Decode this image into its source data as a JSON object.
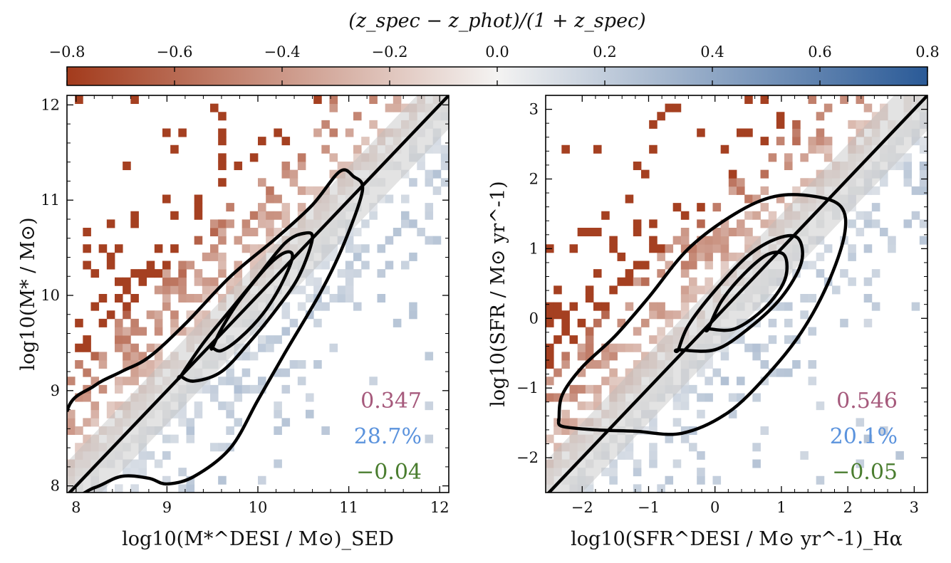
{
  "colorbar": {
    "label": "(z_spec − z_phot)/(1 + z_spec)",
    "range": [
      -0.8,
      0.8
    ],
    "ticks": [
      "−0.8",
      "−0.6",
      "−0.4",
      "−0.2",
      "0.0",
      "0.2",
      "0.4",
      "0.6",
      "0.8"
    ],
    "colors": {
      "neg": "#a33b1c",
      "mid": "#f4f3f2",
      "pos": "#2a5a97"
    }
  },
  "chart_data": [
    {
      "type": "heatmap",
      "panel": "left",
      "xlabel": "log10(M*^DESI / M⊙)_SED",
      "ylabel": "log10(M* / M⊙)",
      "xlim": [
        7.9,
        12.1
      ],
      "ylim": [
        7.93,
        12.1
      ],
      "xticks": [
        "8",
        "9",
        "10",
        "11",
        "12"
      ],
      "yticks": [
        "8",
        "9",
        "10",
        "11",
        "12"
      ],
      "band_halfwidth": 0.35,
      "grid": false,
      "annotations": {
        "value_1": "0.347",
        "value_2": "28.7%",
        "value_3": "−0.04"
      },
      "stat_colors": [
        "#a65a7c",
        "#5b93dd",
        "#4a7d2f"
      ],
      "contours": [
        {
          "level": "outer",
          "points": [
            [
              7.9,
              8.78
            ],
            [
              8.2,
              9.05
            ],
            [
              8.5,
              9.2
            ],
            [
              8.8,
              9.35
            ],
            [
              9.2,
              9.7
            ],
            [
              9.7,
              10.2
            ],
            [
              10.2,
              10.6
            ],
            [
              10.6,
              10.95
            ],
            [
              10.9,
              11.3
            ],
            [
              11.05,
              11.25
            ],
            [
              11.15,
              11.1
            ],
            [
              10.95,
              10.55
            ],
            [
              10.7,
              10.05
            ],
            [
              10.3,
              9.4
            ],
            [
              10.0,
              8.9
            ],
            [
              9.7,
              8.4
            ],
            [
              9.3,
              8.1
            ],
            [
              9.0,
              8.02
            ],
            [
              8.8,
              8.08
            ],
            [
              8.5,
              8.1
            ],
            [
              8.2,
              7.98
            ],
            [
              7.9,
              7.93
            ]
          ]
        },
        {
          "level": "middle",
          "points": [
            [
              9.15,
              9.15
            ],
            [
              9.4,
              9.5
            ],
            [
              9.7,
              9.85
            ],
            [
              10.0,
              10.2
            ],
            [
              10.3,
              10.55
            ],
            [
              10.5,
              10.65
            ],
            [
              10.6,
              10.6
            ],
            [
              10.45,
              10.2
            ],
            [
              10.2,
              9.85
            ],
            [
              9.9,
              9.5
            ],
            [
              9.6,
              9.2
            ],
            [
              9.3,
              9.1
            ],
            [
              9.15,
              9.15
            ]
          ]
        },
        {
          "level": "inner",
          "points": [
            [
              9.5,
              9.45
            ],
            [
              9.6,
              9.65
            ],
            [
              9.8,
              9.95
            ],
            [
              10.1,
              10.3
            ],
            [
              10.3,
              10.45
            ],
            [
              10.38,
              10.4
            ],
            [
              10.25,
              10.1
            ],
            [
              10.05,
              9.8
            ],
            [
              9.8,
              9.55
            ],
            [
              9.6,
              9.42
            ],
            [
              9.5,
              9.45
            ]
          ]
        }
      ]
    },
    {
      "type": "heatmap",
      "panel": "right",
      "xlabel": "log10(SFR^DESI / M⊙ yr^-1)_Hα",
      "ylabel": "log10(SFR / M⊙ yr^-1)",
      "xlim": [
        -2.55,
        3.2
      ],
      "ylim": [
        -2.5,
        3.2
      ],
      "xticks": [
        "−2",
        "−1",
        "0",
        "1",
        "2",
        "3"
      ],
      "yticks": [
        "−2",
        "−1",
        "0",
        "1",
        "2",
        "3"
      ],
      "band_halfwidth": 0.5,
      "grid": false,
      "annotations": {
        "value_1": "0.546",
        "value_2": "20.1%",
        "value_3": "−0.05"
      },
      "stat_colors": [
        "#a65a7c",
        "#5b93dd",
        "#4a7d2f"
      ],
      "contours": [
        {
          "level": "outer",
          "points": [
            [
              -2.35,
              -1.45
            ],
            [
              -2.3,
              -1.1
            ],
            [
              -2.0,
              -0.7
            ],
            [
              -1.5,
              -0.25
            ],
            [
              -1.0,
              0.3
            ],
            [
              -0.4,
              1.0
            ],
            [
              0.3,
              1.5
            ],
            [
              0.9,
              1.75
            ],
            [
              1.5,
              1.75
            ],
            [
              1.9,
              1.6
            ],
            [
              1.95,
              1.2
            ],
            [
              1.7,
              0.5
            ],
            [
              1.3,
              -0.2
            ],
            [
              0.8,
              -0.8
            ],
            [
              0.2,
              -1.35
            ],
            [
              -0.5,
              -1.65
            ],
            [
              -1.2,
              -1.62
            ],
            [
              -1.8,
              -1.6
            ],
            [
              -2.3,
              -1.55
            ],
            [
              -2.35,
              -1.45
            ]
          ]
        },
        {
          "level": "middle",
          "points": [
            [
              -0.55,
              -0.45
            ],
            [
              -0.4,
              -0.1
            ],
            [
              0.0,
              0.4
            ],
            [
              0.5,
              0.9
            ],
            [
              0.95,
              1.15
            ],
            [
              1.25,
              1.15
            ],
            [
              1.3,
              0.8
            ],
            [
              1.0,
              0.3
            ],
            [
              0.5,
              -0.15
            ],
            [
              0.0,
              -0.45
            ],
            [
              -0.55,
              -0.45
            ]
          ]
        },
        {
          "level": "inner",
          "points": [
            [
              -0.1,
              -0.15
            ],
            [
              0.1,
              0.25
            ],
            [
              0.45,
              0.65
            ],
            [
              0.8,
              0.92
            ],
            [
              1.05,
              0.9
            ],
            [
              1.05,
              0.55
            ],
            [
              0.75,
              0.15
            ],
            [
              0.3,
              -0.15
            ],
            [
              -0.1,
              -0.15
            ]
          ]
        }
      ]
    }
  ]
}
